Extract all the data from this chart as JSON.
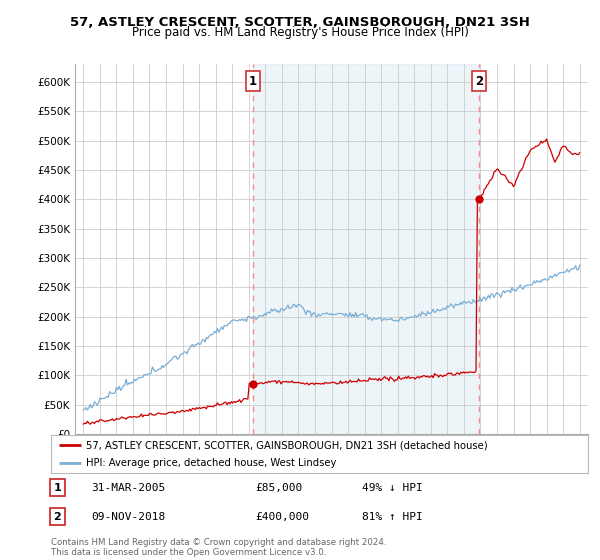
{
  "title": "57, ASTLEY CRESCENT, SCOTTER, GAINSBOROUGH, DN21 3SH",
  "subtitle": "Price paid vs. HM Land Registry's House Price Index (HPI)",
  "ylabel_ticks": [
    "£0",
    "£50K",
    "£100K",
    "£150K",
    "£200K",
    "£250K",
    "£300K",
    "£350K",
    "£400K",
    "£450K",
    "£500K",
    "£550K",
    "£600K"
  ],
  "ytick_values": [
    0,
    50000,
    100000,
    150000,
    200000,
    250000,
    300000,
    350000,
    400000,
    450000,
    500000,
    550000,
    600000
  ],
  "ylim": [
    0,
    630000
  ],
  "xlim_start": 1994.5,
  "xlim_end": 2025.5,
  "hpi_color": "#7bafd4",
  "hpi_fill_color": "#ddeeff",
  "price_color": "#cc0000",
  "vline_color": "#ff8888",
  "sale1_year": 2005.25,
  "sale1_price": 85000,
  "sale2_year": 2018.92,
  "sale2_price": 400000,
  "legend_entries": [
    "57, ASTLEY CRESCENT, SCOTTER, GAINSBOROUGH, DN21 3SH (detached house)",
    "HPI: Average price, detached house, West Lindsey"
  ],
  "table_rows": [
    {
      "num": "1",
      "date": "31-MAR-2005",
      "price": "£85,000",
      "note": "49% ↓ HPI"
    },
    {
      "num": "2",
      "date": "09-NOV-2018",
      "price": "£400,000",
      "note": "81% ↑ HPI"
    }
  ],
  "footnote": "Contains HM Land Registry data © Crown copyright and database right 2024.\nThis data is licensed under the Open Government Licence v3.0.",
  "bg_color": "#ffffff",
  "grid_color": "#cccccc"
}
